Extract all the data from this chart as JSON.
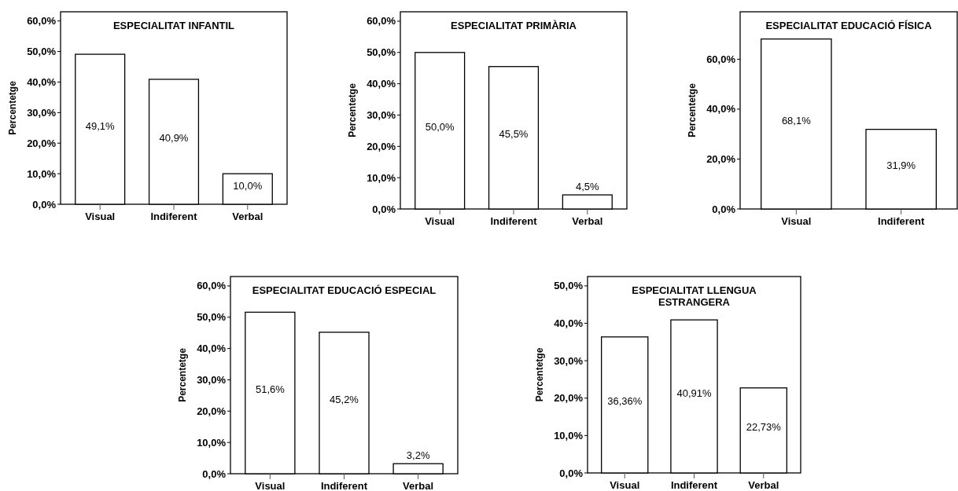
{
  "chart_data": [
    {
      "type": "bar",
      "title": "ESPECIALITAT INFANTIL",
      "ylabel": "Percentetge",
      "categories": [
        "Visual",
        "Indiferent",
        "Verbal"
      ],
      "values": [
        49.1,
        40.9,
        10.0
      ],
      "value_labels": [
        "49,1%",
        "40,9%",
        "10,0%"
      ],
      "color": "#ffffff",
      "ylim": [
        0,
        63
      ],
      "yticks": [
        {
          "value": 0,
          "label": "0,0%"
        },
        {
          "value": 10,
          "label": "10,0%"
        },
        {
          "value": 20,
          "label": "20,0%"
        },
        {
          "value": 30,
          "label": "30,0%"
        },
        {
          "value": 40,
          "label": "40,0%"
        },
        {
          "value": 50,
          "label": "50,0%"
        },
        {
          "value": 60,
          "label": "60,0%"
        }
      ]
    },
    {
      "type": "bar",
      "title": "ESPECIALITAT PRIMÀRIA",
      "ylabel": "Percentetge",
      "categories": [
        "Visual",
        "Indiferent",
        "Verbal"
      ],
      "values": [
        50.0,
        45.5,
        4.5
      ],
      "value_labels": [
        "50,0%",
        "45,5%",
        "4,5%"
      ],
      "color": "#ffffff",
      "ylim": [
        0,
        63
      ],
      "yticks": [
        {
          "value": 0,
          "label": "0,0%"
        },
        {
          "value": 10,
          "label": "10,0%"
        },
        {
          "value": 20,
          "label": "20,0%"
        },
        {
          "value": 30,
          "label": "30,0%"
        },
        {
          "value": 40,
          "label": "40,0%"
        },
        {
          "value": 50,
          "label": "50,0%"
        },
        {
          "value": 60,
          "label": "60,0%"
        }
      ]
    },
    {
      "type": "bar",
      "title": "ESPECIALITAT EDUCACIÓ FÍSICA",
      "ylabel": "Percentetge",
      "categories": [
        "Visual",
        "Indiferent"
      ],
      "values": [
        68.1,
        31.9
      ],
      "value_labels": [
        "68,1%",
        "31,9%"
      ],
      "color": "#ffffff",
      "ylim": [
        0,
        79
      ],
      "yticks": [
        {
          "value": 0,
          "label": "0,0%"
        },
        {
          "value": 20,
          "label": "20,0%"
        },
        {
          "value": 40,
          "label": "40,0%"
        },
        {
          "value": 60,
          "label": "60,0%"
        }
      ]
    },
    {
      "type": "bar",
      "title": "ESPECIALITAT EDUCACIÓ ESPECIAL",
      "ylabel": "Percentetge",
      "categories": [
        "Visual",
        "Indiferent",
        "Verbal"
      ],
      "values": [
        51.6,
        45.2,
        3.2
      ],
      "value_labels": [
        "51,6%",
        "45,2%",
        "3,2%"
      ],
      "color": "#ffffff",
      "ylim": [
        0,
        63
      ],
      "yticks": [
        {
          "value": 0,
          "label": "0,0%"
        },
        {
          "value": 10,
          "label": "10,0%"
        },
        {
          "value": 20,
          "label": "20,0%"
        },
        {
          "value": 30,
          "label": "30,0%"
        },
        {
          "value": 40,
          "label": "40,0%"
        },
        {
          "value": 50,
          "label": "50,0%"
        },
        {
          "value": 60,
          "label": "60,0%"
        }
      ]
    },
    {
      "type": "bar",
      "title": "ESPECIALITAT LLENGUA ESTRANGERA",
      "ylabel": "Percentetge",
      "categories": [
        "Visual",
        "Indiferent",
        "Verbal"
      ],
      "values": [
        36.36,
        40.91,
        22.73
      ],
      "value_labels": [
        "36,36%",
        "40,91%",
        "22,73%"
      ],
      "color": "#ffffff",
      "ylim": [
        0,
        52.5
      ],
      "yticks": [
        {
          "value": 0,
          "label": "0,0%"
        },
        {
          "value": 10,
          "label": "10,0%"
        },
        {
          "value": 20,
          "label": "20,0%"
        },
        {
          "value": 30,
          "label": "30,0%"
        },
        {
          "value": 40,
          "label": "40,0%"
        },
        {
          "value": 50,
          "label": "50,0%"
        }
      ]
    }
  ]
}
